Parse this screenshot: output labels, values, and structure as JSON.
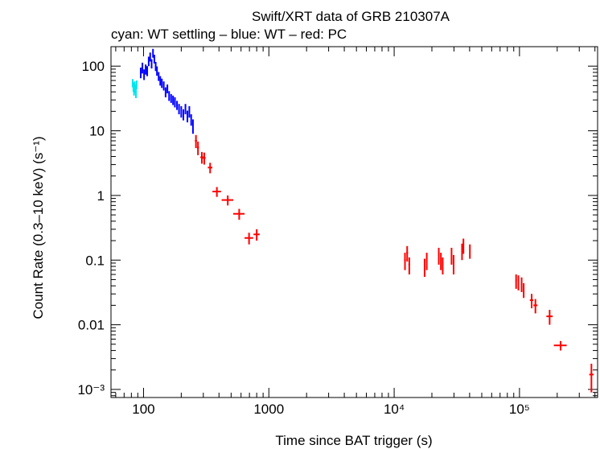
{
  "chart_data": {
    "type": "scatter",
    "title": "Swift/XRT data of GRB 210307A",
    "subtitle": "cyan: WT settling – blue: WT – red: PC",
    "xlabel": "Time since BAT trigger (s)",
    "ylabel": "Count Rate (0.3–10 keV) (s⁻¹)",
    "xscale": "log",
    "yscale": "log",
    "xlim": [
      55,
      420000
    ],
    "ylim": [
      0.00075,
      200
    ],
    "x_ticks": [
      {
        "value": 100,
        "label": "100"
      },
      {
        "value": 1000,
        "label": "1000"
      },
      {
        "value": 10000,
        "label": "10⁴"
      },
      {
        "value": 100000,
        "label": "10⁵"
      }
    ],
    "y_ticks": [
      {
        "value": 100,
        "label": "100"
      },
      {
        "value": 10,
        "label": "10"
      },
      {
        "value": 1,
        "label": "1"
      },
      {
        "value": 0.1,
        "label": "0.1"
      },
      {
        "value": 0.01,
        "label": "0.01"
      },
      {
        "value": 0.001,
        "label": "10⁻³"
      }
    ],
    "series": [
      {
        "name": "WT settling",
        "color": "#00e5ee",
        "points": [
          {
            "x": 82,
            "y": 55,
            "xerr": [
              0.5,
              0.5
            ],
            "yerr": [
              8,
              8
            ]
          },
          {
            "x": 83,
            "y": 48,
            "xerr": [
              0.5,
              0.5
            ],
            "yerr": [
              8,
              8
            ]
          },
          {
            "x": 84,
            "y": 42,
            "xerr": [
              0.5,
              0.5
            ],
            "yerr": [
              7,
              7
            ]
          },
          {
            "x": 85,
            "y": 50,
            "xerr": [
              0.5,
              0.5
            ],
            "yerr": [
              8,
              8
            ]
          },
          {
            "x": 86,
            "y": 45,
            "xerr": [
              0.5,
              0.5
            ],
            "yerr": [
              7,
              7
            ]
          },
          {
            "x": 87,
            "y": 38,
            "xerr": [
              0.5,
              0.5
            ],
            "yerr": [
              6,
              6
            ]
          },
          {
            "x": 88,
            "y": 52,
            "xerr": [
              0.5,
              0.5
            ],
            "yerr": [
              8,
              8
            ]
          }
        ]
      },
      {
        "name": "WT",
        "color": "#0000ff",
        "points": [
          {
            "x": 95,
            "y": 80,
            "xerr": [
              1,
              1
            ],
            "yerr": [
              15,
              15
            ]
          },
          {
            "x": 98,
            "y": 95,
            "xerr": [
              1,
              1
            ],
            "yerr": [
              18,
              18
            ]
          },
          {
            "x": 101,
            "y": 75,
            "xerr": [
              1,
              1
            ],
            "yerr": [
              14,
              14
            ]
          },
          {
            "x": 104,
            "y": 90,
            "xerr": [
              1,
              1
            ],
            "yerr": [
              16,
              16
            ]
          },
          {
            "x": 107,
            "y": 85,
            "xerr": [
              1,
              1
            ],
            "yerr": [
              15,
              15
            ]
          },
          {
            "x": 110,
            "y": 120,
            "xerr": [
              1,
              1
            ],
            "yerr": [
              20,
              20
            ]
          },
          {
            "x": 113,
            "y": 140,
            "xerr": [
              1,
              1
            ],
            "yerr": [
              22,
              22
            ]
          },
          {
            "x": 116,
            "y": 110,
            "xerr": [
              1,
              1
            ],
            "yerr": [
              18,
              18
            ]
          },
          {
            "x": 119,
            "y": 160,
            "xerr": [
              1,
              1
            ],
            "yerr": [
              25,
              25
            ]
          },
          {
            "x": 122,
            "y": 130,
            "xerr": [
              1,
              1
            ],
            "yerr": [
              20,
              20
            ]
          },
          {
            "x": 125,
            "y": 100,
            "xerr": [
              1,
              1
            ],
            "yerr": [
              16,
              16
            ]
          },
          {
            "x": 128,
            "y": 85,
            "xerr": [
              1,
              1
            ],
            "yerr": [
              14,
              14
            ]
          },
          {
            "x": 132,
            "y": 70,
            "xerr": [
              1,
              1
            ],
            "yerr": [
              11,
              11
            ]
          },
          {
            "x": 136,
            "y": 60,
            "xerr": [
              1,
              1
            ],
            "yerr": [
              10,
              10
            ]
          },
          {
            "x": 140,
            "y": 55,
            "xerr": [
              1,
              1
            ],
            "yerr": [
              9,
              9
            ]
          },
          {
            "x": 145,
            "y": 50,
            "xerr": [
              1,
              1
            ],
            "yerr": [
              8,
              8
            ]
          },
          {
            "x": 150,
            "y": 40,
            "xerr": [
              1,
              1
            ],
            "yerr": [
              7,
              7
            ]
          },
          {
            "x": 155,
            "y": 45,
            "xerr": [
              1,
              1
            ],
            "yerr": [
              7,
              7
            ]
          },
          {
            "x": 160,
            "y": 35,
            "xerr": [
              1,
              1
            ],
            "yerr": [
              6,
              6
            ]
          },
          {
            "x": 166,
            "y": 32,
            "xerr": [
              1,
              1
            ],
            "yerr": [
              5,
              5
            ]
          },
          {
            "x": 172,
            "y": 30,
            "xerr": [
              1,
              1
            ],
            "yerr": [
              5,
              5
            ]
          },
          {
            "x": 178,
            "y": 28,
            "xerr": [
              1,
              1
            ],
            "yerr": [
              5,
              5
            ]
          },
          {
            "x": 185,
            "y": 25,
            "xerr": [
              1,
              1
            ],
            "yerr": [
              4,
              4
            ]
          },
          {
            "x": 192,
            "y": 22,
            "xerr": [
              1,
              1
            ],
            "yerr": [
              4,
              4
            ]
          },
          {
            "x": 200,
            "y": 20,
            "xerr": [
              1,
              1
            ],
            "yerr": [
              4,
              4
            ]
          },
          {
            "x": 208,
            "y": 18,
            "xerr": [
              1,
              1
            ],
            "yerr": [
              3.5,
              3.5
            ]
          },
          {
            "x": 216,
            "y": 22,
            "xerr": [
              1,
              1
            ],
            "yerr": [
              4,
              4
            ]
          },
          {
            "x": 224,
            "y": 17,
            "xerr": [
              1,
              1
            ],
            "yerr": [
              3.5,
              3.5
            ]
          },
          {
            "x": 232,
            "y": 20,
            "xerr": [
              1,
              1
            ],
            "yerr": [
              4,
              4
            ]
          },
          {
            "x": 240,
            "y": 15,
            "xerr": [
              1,
              1
            ],
            "yerr": [
              3,
              3
            ]
          },
          {
            "x": 248,
            "y": 12,
            "xerr": [
              1,
              1
            ],
            "yerr": [
              3,
              3
            ]
          }
        ]
      },
      {
        "name": "PC",
        "color": "#ff0000",
        "points": [
          {
            "x": 262,
            "y": 7,
            "xerr": [
              5,
              5
            ],
            "yerr": [
              1.6,
              1.6
            ]
          },
          {
            "x": 272,
            "y": 5.5,
            "xerr": [
              5,
              5
            ],
            "yerr": [
              1.3,
              1.3
            ]
          },
          {
            "x": 292,
            "y": 3.9,
            "xerr": [
              8,
              8
            ],
            "yerr": [
              0.8,
              0.8
            ]
          },
          {
            "x": 305,
            "y": 3.8,
            "xerr": [
              8,
              8
            ],
            "yerr": [
              0.8,
              0.8
            ]
          },
          {
            "x": 340,
            "y": 2.7,
            "xerr": [
              14,
              14
            ],
            "yerr": [
              0.5,
              0.5
            ]
          },
          {
            "x": 385,
            "y": 1.15,
            "xerr": [
              30,
              30
            ],
            "yerr": [
              0.2,
              0.2
            ]
          },
          {
            "x": 470,
            "y": 0.85,
            "xerr": [
              50,
              50
            ],
            "yerr": [
              0.15,
              0.15
            ]
          },
          {
            "x": 580,
            "y": 0.52,
            "xerr": [
              60,
              60
            ],
            "yerr": [
              0.1,
              0.1
            ]
          },
          {
            "x": 695,
            "y": 0.22,
            "xerr": [
              55,
              55
            ],
            "yerr": [
              0.045,
              0.045
            ]
          },
          {
            "x": 800,
            "y": 0.25,
            "xerr": [
              45,
              45
            ],
            "yerr": [
              0.05,
              0.05
            ]
          },
          {
            "x": 12200,
            "y": 0.1,
            "xerr": [
              200,
              200
            ],
            "yerr": [
              0.03,
              0.03
            ]
          },
          {
            "x": 12700,
            "y": 0.13,
            "xerr": [
              200,
              200
            ],
            "yerr": [
              0.035,
              0.035
            ]
          },
          {
            "x": 13200,
            "y": 0.085,
            "xerr": [
              200,
              200
            ],
            "yerr": [
              0.025,
              0.025
            ]
          },
          {
            "x": 17500,
            "y": 0.08,
            "xerr": [
              250,
              250
            ],
            "yerr": [
              0.025,
              0.025
            ]
          },
          {
            "x": 18200,
            "y": 0.1,
            "xerr": [
              250,
              250
            ],
            "yerr": [
              0.03,
              0.03
            ]
          },
          {
            "x": 22700,
            "y": 0.12,
            "xerr": [
              250,
              250
            ],
            "yerr": [
              0.035,
              0.035
            ]
          },
          {
            "x": 23600,
            "y": 0.1,
            "xerr": [
              250,
              250
            ],
            "yerr": [
              0.03,
              0.03
            ]
          },
          {
            "x": 24400,
            "y": 0.085,
            "xerr": [
              250,
              250
            ],
            "yerr": [
              0.025,
              0.025
            ]
          },
          {
            "x": 28700,
            "y": 0.12,
            "xerr": [
              300,
              300
            ],
            "yerr": [
              0.035,
              0.035
            ]
          },
          {
            "x": 29800,
            "y": 0.09,
            "xerr": [
              300,
              300
            ],
            "yerr": [
              0.03,
              0.03
            ]
          },
          {
            "x": 34800,
            "y": 0.14,
            "xerr": [
              400,
              400
            ],
            "yerr": [
              0.04,
              0.04
            ]
          },
          {
            "x": 35700,
            "y": 0.17,
            "xerr": [
              400,
              400
            ],
            "yerr": [
              0.045,
              0.045
            ]
          },
          {
            "x": 40200,
            "y": 0.14,
            "xerr": [
              400,
              400
            ],
            "yerr": [
              0.035,
              0.035
            ]
          },
          {
            "x": 94000,
            "y": 0.048,
            "xerr": [
              1200,
              1200
            ],
            "yerr": [
              0.012,
              0.012
            ]
          },
          {
            "x": 98000,
            "y": 0.046,
            "xerr": [
              1200,
              1200
            ],
            "yerr": [
              0.012,
              0.012
            ]
          },
          {
            "x": 104000,
            "y": 0.043,
            "xerr": [
              1200,
              1200
            ],
            "yerr": [
              0.011,
              0.011
            ]
          },
          {
            "x": 108000,
            "y": 0.035,
            "xerr": [
              1200,
              1200
            ],
            "yerr": [
              0.009,
              0.009
            ]
          },
          {
            "x": 125000,
            "y": 0.024,
            "xerr": [
              4000,
              4000
            ],
            "yerr": [
              0.006,
              0.006
            ]
          },
          {
            "x": 134000,
            "y": 0.02,
            "xerr": [
              5000,
              5000
            ],
            "yerr": [
              0.005,
              0.005
            ]
          },
          {
            "x": 174000,
            "y": 0.0135,
            "xerr": [
              10000,
              10000
            ],
            "yerr": [
              0.0035,
              0.0035
            ]
          },
          {
            "x": 213000,
            "y": 0.0048,
            "xerr": [
              25000,
              25000
            ],
            "yerr": [
              0.0008,
              0.0008
            ]
          },
          {
            "x": 375000,
            "y": 0.0017,
            "xerr": [
              15000,
              15000
            ],
            "yerr": [
              0.0008,
              0.0008
            ]
          }
        ]
      }
    ]
  }
}
